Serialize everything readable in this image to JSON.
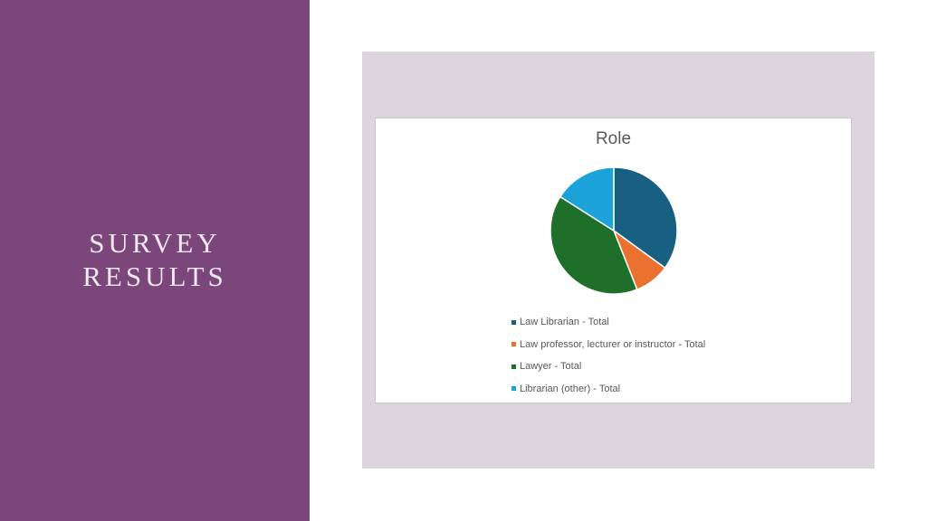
{
  "slide": {
    "title_line1": "SURVEY",
    "title_line2": "RESULTS",
    "background_color": "#7b4679",
    "frame_color": "#ddd4df"
  },
  "chart_data": {
    "type": "pie",
    "title": "Role",
    "categories": [
      "Law Librarian - Total",
      "Law professor, lecturer or instructor - Total",
      "Lawyer - Total",
      "Librarian (other) - Total"
    ],
    "values": [
      35,
      9,
      40,
      16
    ],
    "colors": [
      "#186082",
      "#eb7130",
      "#1d6f2a",
      "#1ba2d8"
    ],
    "start": "12 o'clock",
    "direction": "clockwise",
    "legend_position": "bottom"
  }
}
